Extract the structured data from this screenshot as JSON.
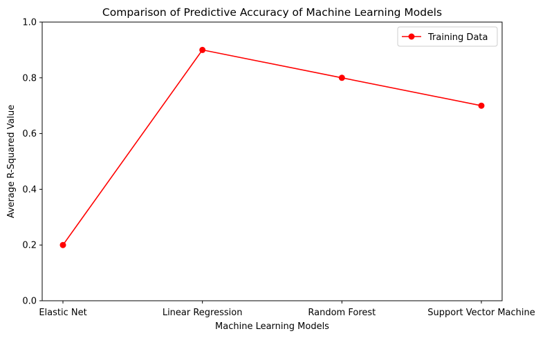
{
  "chart_data": {
    "type": "line",
    "title": "Comparison of Predictive Accuracy of Machine Learning Models",
    "xlabel": "Machine Learning Models",
    "ylabel": "Average R-Squared Value",
    "categories": [
      "Elastic Net",
      "Linear Regression",
      "Random Forest",
      "Support Vector Machine"
    ],
    "series": [
      {
        "name": "Training Data",
        "values": [
          0.2,
          0.9,
          0.8,
          0.7
        ],
        "color": "#ff0000",
        "marker": "circle"
      }
    ],
    "ylim": [
      0,
      1
    ],
    "yticks": [
      "0.0",
      "0.2",
      "0.4",
      "0.6",
      "0.8",
      "1.0"
    ],
    "grid": false,
    "legend_position": "top-right"
  }
}
